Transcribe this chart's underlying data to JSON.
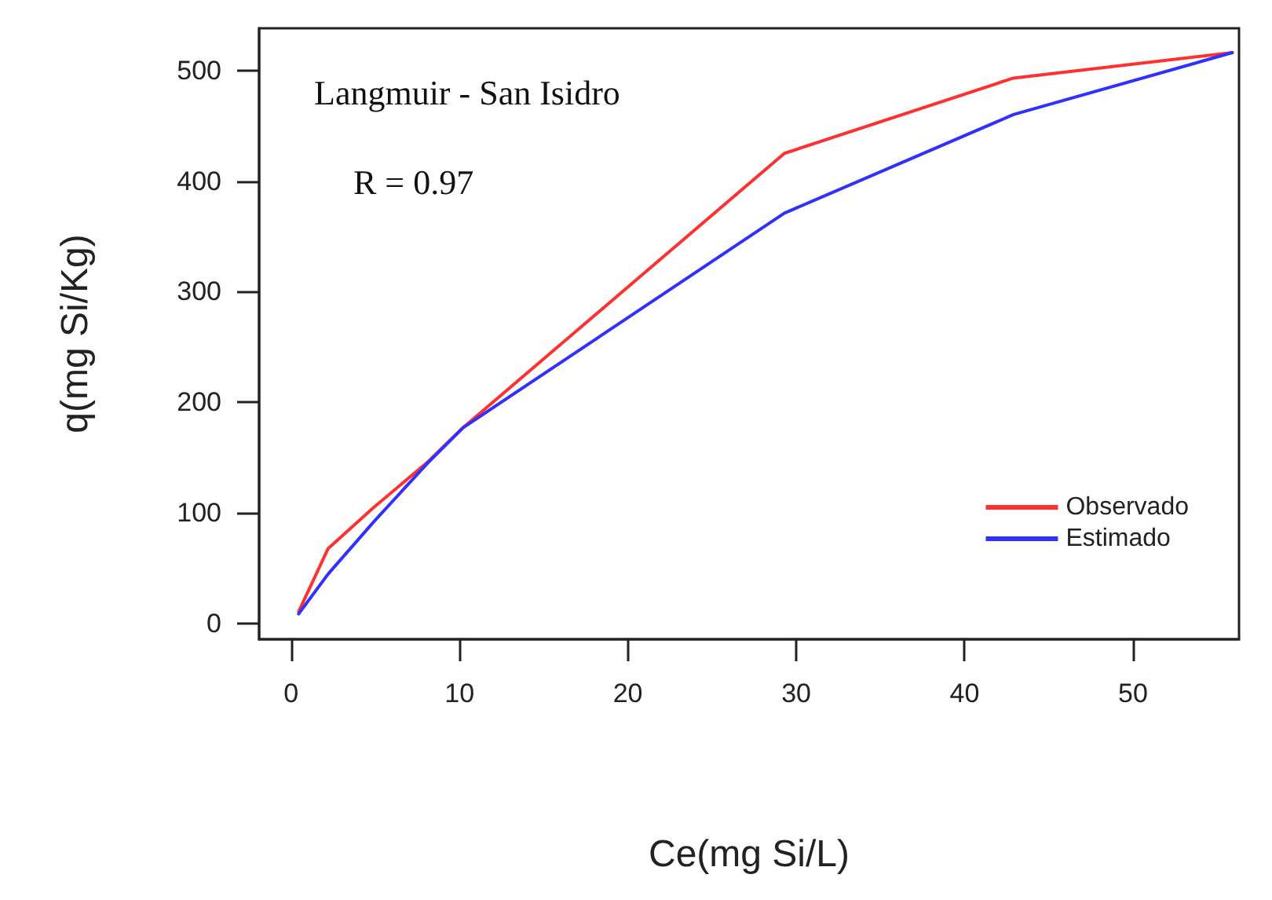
{
  "chart_data": {
    "type": "line",
    "xlabel": "Ce(mg Si/L)",
    "ylabel": "q(mg Si/Kg)",
    "annotations": [
      "Langmuir - San Isidro",
      "R = 0.97"
    ],
    "x": [
      0.45,
      2.2,
      4.9,
      8.1,
      10.2,
      29.3,
      42.9,
      55.9
    ],
    "series": [
      {
        "name": "Observado",
        "color": "#ff3030",
        "values": [
          11,
          68,
          105,
          146,
          177,
          425,
          493,
          516
        ]
      },
      {
        "name": "Estimado",
        "color": "#3030ff",
        "values": [
          9,
          45,
          92,
          145,
          177,
          371,
          460,
          516
        ]
      }
    ],
    "xlim": [
      -1.9,
      56.3
    ],
    "ylim": [
      -14,
      538
    ],
    "xticks": [
      0,
      10,
      20,
      30,
      40,
      50
    ],
    "yticks": [
      0,
      100,
      200,
      300,
      400,
      500
    ],
    "grid": false,
    "legend": "bottom right",
    "marker": "none",
    "line_style": "solid"
  }
}
